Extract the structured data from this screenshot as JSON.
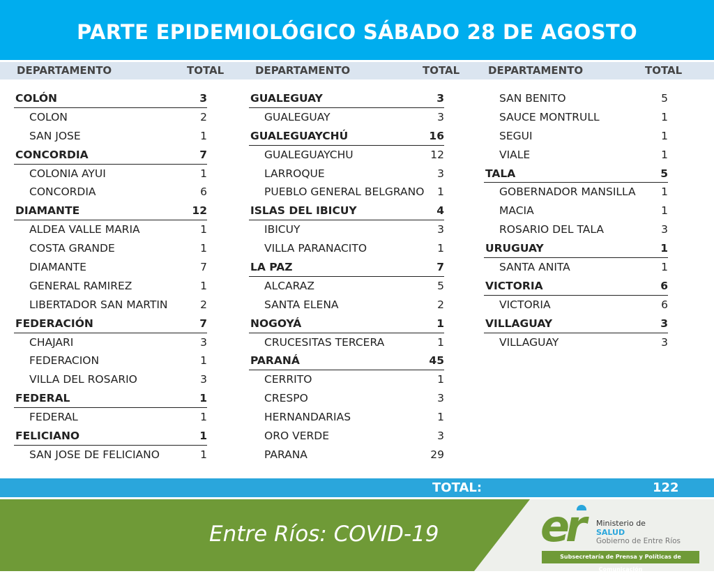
{
  "header": {
    "title": "PARTE EPIDEMIOLÓGICO SÁBADO 28 DE AGOSTO"
  },
  "columns_header": {
    "dept": "DEPARTAMENTO",
    "total": "TOTAL"
  },
  "columns": [
    [
      {
        "t": "d",
        "n": "COLÓN",
        "v": "3"
      },
      {
        "t": "l",
        "n": "COLON",
        "v": "2"
      },
      {
        "t": "l",
        "n": "SAN JOSE",
        "v": "1"
      },
      {
        "t": "d",
        "n": "CONCORDIA",
        "v": "7"
      },
      {
        "t": "l",
        "n": "COLONIA AYUI",
        "v": "1"
      },
      {
        "t": "l",
        "n": "CONCORDIA",
        "v": "6"
      },
      {
        "t": "d",
        "n": "DIAMANTE",
        "v": "12"
      },
      {
        "t": "l",
        "n": "ALDEA VALLE MARIA",
        "v": "1"
      },
      {
        "t": "l",
        "n": "COSTA GRANDE",
        "v": "1"
      },
      {
        "t": "l",
        "n": "DIAMANTE",
        "v": "7"
      },
      {
        "t": "l",
        "n": "GENERAL RAMIREZ",
        "v": "1"
      },
      {
        "t": "l",
        "n": "LIBERTADOR SAN MARTIN",
        "v": "2"
      },
      {
        "t": "d",
        "n": "FEDERACIÓN",
        "v": "7"
      },
      {
        "t": "l",
        "n": "CHAJARI",
        "v": "3"
      },
      {
        "t": "l",
        "n": "FEDERACION",
        "v": "1"
      },
      {
        "t": "l",
        "n": "VILLA DEL ROSARIO",
        "v": "3"
      },
      {
        "t": "d",
        "n": "FEDERAL",
        "v": "1"
      },
      {
        "t": "l",
        "n": "FEDERAL",
        "v": "1"
      },
      {
        "t": "d",
        "n": "FELICIANO",
        "v": "1"
      },
      {
        "t": "l",
        "n": "SAN JOSE DE FELICIANO",
        "v": "1"
      }
    ],
    [
      {
        "t": "d",
        "n": "GUALEGUAY",
        "v": "3"
      },
      {
        "t": "l",
        "n": "GUALEGUAY",
        "v": "3"
      },
      {
        "t": "d",
        "n": "GUALEGUAYCHÚ",
        "v": "16"
      },
      {
        "t": "l",
        "n": "GUALEGUAYCHU",
        "v": "12"
      },
      {
        "t": "l",
        "n": "LARROQUE",
        "v": "3"
      },
      {
        "t": "l",
        "n": "PUEBLO GENERAL BELGRANO",
        "v": "1"
      },
      {
        "t": "d",
        "n": "ISLAS DEL IBICUY",
        "v": "4"
      },
      {
        "t": "l",
        "n": "IBICUY",
        "v": "3"
      },
      {
        "t": "l",
        "n": "VILLA PARANACITO",
        "v": "1"
      },
      {
        "t": "d",
        "n": "LA PAZ",
        "v": "7"
      },
      {
        "t": "l",
        "n": "ALCARAZ",
        "v": "5"
      },
      {
        "t": "l",
        "n": "SANTA ELENA",
        "v": "2"
      },
      {
        "t": "d",
        "n": "NOGOYÁ",
        "v": "1"
      },
      {
        "t": "l",
        "n": "CRUCESITAS TERCERA",
        "v": "1"
      },
      {
        "t": "d",
        "n": "PARANÁ",
        "v": "45"
      },
      {
        "t": "l",
        "n": "CERRITO",
        "v": "1"
      },
      {
        "t": "l",
        "n": "CRESPO",
        "v": "3"
      },
      {
        "t": "l",
        "n": "HERNANDARIAS",
        "v": "1"
      },
      {
        "t": "l",
        "n": "ORO VERDE",
        "v": "3"
      },
      {
        "t": "l",
        "n": "PARANA",
        "v": "29"
      }
    ],
    [
      {
        "t": "l",
        "n": "SAN BENITO",
        "v": "5"
      },
      {
        "t": "l",
        "n": "SAUCE MONTRULL",
        "v": "1"
      },
      {
        "t": "l",
        "n": "SEGUI",
        "v": "1"
      },
      {
        "t": "l",
        "n": "VIALE",
        "v": "1"
      },
      {
        "t": "d",
        "n": "TALA",
        "v": "5"
      },
      {
        "t": "l",
        "n": "GOBERNADOR MANSILLA",
        "v": "1"
      },
      {
        "t": "l",
        "n": "MACIA",
        "v": "1"
      },
      {
        "t": "l",
        "n": "ROSARIO DEL TALA",
        "v": "3"
      },
      {
        "t": "d",
        "n": "URUGUAY",
        "v": "1"
      },
      {
        "t": "l",
        "n": "SANTA ANITA",
        "v": "1"
      },
      {
        "t": "d",
        "n": "VICTORIA",
        "v": "6"
      },
      {
        "t": "l",
        "n": "VICTORIA",
        "v": "6"
      },
      {
        "t": "d",
        "n": "VILLAGUAY",
        "v": "3"
      },
      {
        "t": "l",
        "n": "VILLAGUAY",
        "v": "3"
      }
    ]
  ],
  "total": {
    "label": "TOTAL:",
    "value": "122"
  },
  "footer": {
    "title": "Entre Ríos: COVID-19",
    "logo_letters": "er",
    "ministry": "Ministerio de",
    "salud": "SALUD",
    "gov": "Gobierno de Entre Ríos",
    "sub": "Subsecretaría de Prensa y Políticas de Comunicación"
  },
  "colors": {
    "blue": "#00adee",
    "green": "#6f9a37"
  }
}
